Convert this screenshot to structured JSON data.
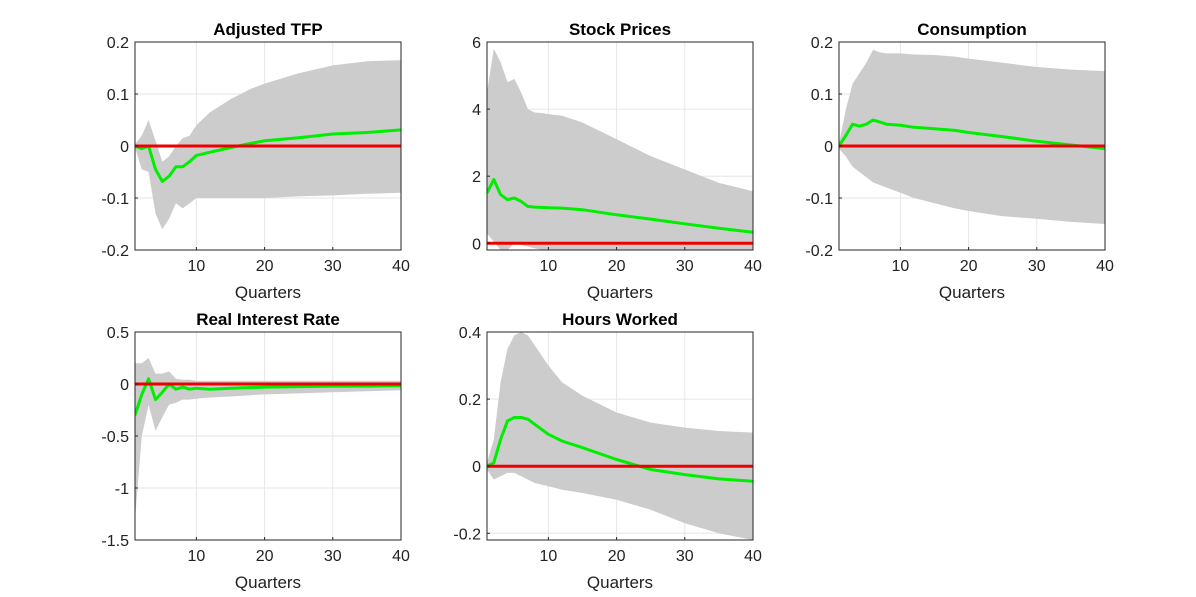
{
  "figure": {
    "colors": {
      "band": "#cccccc",
      "median": "#00ee00",
      "zero_line": "#ee0000",
      "grid": "#e6e6e6",
      "axes": "#262626"
    }
  },
  "chart_data": [
    {
      "type": "area",
      "title": "Adjusted TFP",
      "xlabel": "Quarters",
      "ylabel": "",
      "xlim": [
        1,
        40
      ],
      "ylim": [
        -0.2,
        0.2
      ],
      "xticks": [
        10,
        20,
        30,
        40
      ],
      "yticks": [
        -0.2,
        -0.1,
        0,
        0.1,
        0.2
      ],
      "ytick_labels": [
        "-0.2",
        "-0.1",
        "0",
        "0.1",
        "0.2"
      ],
      "grid": true,
      "series": [
        {
          "name": "median",
          "x": [
            1,
            2,
            3,
            4,
            5,
            6,
            7,
            8,
            9,
            10,
            12,
            15,
            18,
            20,
            25,
            30,
            35,
            40
          ],
          "values": [
            0.0,
            -0.005,
            0.0,
            -0.045,
            -0.068,
            -0.058,
            -0.04,
            -0.04,
            -0.03,
            -0.018,
            -0.012,
            -0.003,
            0.005,
            0.01,
            0.016,
            0.023,
            0.026,
            0.031
          ]
        },
        {
          "name": "zero",
          "x": [
            1,
            40
          ],
          "values": [
            0,
            0
          ]
        }
      ],
      "band": {
        "x": [
          1,
          2,
          3,
          4,
          5,
          6,
          7,
          8,
          9,
          10,
          12,
          15,
          18,
          20,
          25,
          30,
          35,
          40
        ],
        "upper": [
          0.003,
          0.02,
          0.05,
          0.01,
          -0.03,
          -0.02,
          0.0,
          0.015,
          0.02,
          0.04,
          0.065,
          0.09,
          0.11,
          0.12,
          0.14,
          0.155,
          0.163,
          0.165
        ],
        "lower": [
          -0.003,
          -0.045,
          -0.05,
          -0.13,
          -0.16,
          -0.14,
          -0.11,
          -0.12,
          -0.11,
          -0.1,
          -0.1,
          -0.1,
          -0.1,
          -0.1,
          -0.097,
          -0.095,
          -0.092,
          -0.09
        ]
      }
    },
    {
      "type": "area",
      "title": "Stock Prices",
      "xlabel": "Quarters",
      "ylabel": "",
      "xlim": [
        1,
        40
      ],
      "ylim": [
        -0.2,
        6
      ],
      "xticks": [
        10,
        20,
        30,
        40
      ],
      "yticks": [
        0,
        2,
        4,
        6
      ],
      "ytick_labels": [
        "0",
        "2",
        "4",
        "6"
      ],
      "grid": true,
      "series": [
        {
          "name": "median",
          "x": [
            1,
            2,
            3,
            4,
            5,
            6,
            7,
            8,
            9,
            10,
            12,
            15,
            20,
            25,
            30,
            35,
            40
          ],
          "values": [
            1.5,
            1.9,
            1.45,
            1.3,
            1.35,
            1.25,
            1.1,
            1.08,
            1.07,
            1.06,
            1.05,
            1.0,
            0.85,
            0.72,
            0.58,
            0.45,
            0.33
          ]
        },
        {
          "name": "zero",
          "x": [
            1,
            40
          ],
          "values": [
            0,
            0
          ]
        }
      ],
      "band": {
        "x": [
          1,
          2,
          3,
          4,
          5,
          6,
          7,
          8,
          9,
          10,
          12,
          15,
          20,
          25,
          30,
          35,
          40
        ],
        "upper": [
          4.5,
          5.8,
          5.4,
          4.8,
          4.9,
          4.5,
          4.0,
          3.9,
          3.88,
          3.85,
          3.8,
          3.6,
          3.1,
          2.6,
          2.2,
          1.8,
          1.55
        ],
        "lower": [
          0.3,
          0.05,
          -0.2,
          -0.2,
          0.0,
          -0.05,
          -0.1,
          -0.15,
          -0.2,
          -0.2,
          -0.2,
          -0.2,
          -0.2,
          -0.2,
          -0.2,
          -0.2,
          -0.2
        ]
      }
    },
    {
      "type": "area",
      "title": "Consumption",
      "xlabel": "Quarters",
      "ylabel": "",
      "xlim": [
        1,
        40
      ],
      "ylim": [
        -0.2,
        0.2
      ],
      "xticks": [
        10,
        20,
        30,
        40
      ],
      "yticks": [
        -0.2,
        -0.1,
        0,
        0.1,
        0.2
      ],
      "ytick_labels": [
        "-0.2",
        "-0.1",
        "0",
        "0.1",
        "0.2"
      ],
      "grid": true,
      "series": [
        {
          "name": "median",
          "x": [
            1,
            2,
            3,
            4,
            5,
            6,
            7,
            8,
            10,
            12,
            15,
            18,
            20,
            25,
            30,
            35,
            40
          ],
          "values": [
            0.0,
            0.02,
            0.042,
            0.038,
            0.042,
            0.05,
            0.046,
            0.042,
            0.04,
            0.036,
            0.033,
            0.03,
            0.026,
            0.018,
            0.009,
            0.002,
            -0.005
          ]
        },
        {
          "name": "zero",
          "x": [
            1,
            40
          ],
          "values": [
            0,
            0
          ]
        }
      ],
      "band": {
        "x": [
          1,
          2,
          3,
          4,
          5,
          6,
          7,
          8,
          10,
          12,
          15,
          18,
          20,
          25,
          30,
          35,
          40
        ],
        "upper": [
          0.005,
          0.07,
          0.12,
          0.14,
          0.16,
          0.185,
          0.18,
          0.178,
          0.178,
          0.176,
          0.175,
          0.172,
          0.168,
          0.16,
          0.152,
          0.147,
          0.144
        ],
        "lower": [
          -0.005,
          -0.02,
          -0.04,
          -0.05,
          -0.06,
          -0.07,
          -0.075,
          -0.08,
          -0.09,
          -0.1,
          -0.11,
          -0.12,
          -0.125,
          -0.135,
          -0.14,
          -0.146,
          -0.15
        ]
      }
    },
    {
      "type": "area",
      "title": "Real Interest Rate",
      "xlabel": "Quarters",
      "ylabel": "",
      "xlim": [
        1,
        40
      ],
      "ylim": [
        -1.5,
        0.5
      ],
      "xticks": [
        10,
        20,
        30,
        40
      ],
      "yticks": [
        -1.5,
        -1,
        -0.5,
        0,
        0.5
      ],
      "ytick_labels": [
        "-1.5",
        "-1",
        "-0.5",
        "0",
        "0.5"
      ],
      "grid": true,
      "series": [
        {
          "name": "median",
          "x": [
            1,
            2,
            3,
            4,
            5,
            6,
            7,
            8,
            9,
            10,
            12,
            15,
            20,
            25,
            30,
            35,
            40
          ],
          "values": [
            -0.3,
            -0.1,
            0.05,
            -0.15,
            -0.08,
            0.0,
            -0.05,
            -0.03,
            -0.05,
            -0.04,
            -0.05,
            -0.04,
            -0.03,
            -0.025,
            -0.02,
            -0.02,
            -0.015
          ]
        },
        {
          "name": "zero",
          "x": [
            1,
            40
          ],
          "values": [
            0,
            0
          ]
        }
      ],
      "band": {
        "x": [
          1,
          2,
          3,
          4,
          5,
          6,
          7,
          8,
          9,
          10,
          12,
          15,
          20,
          25,
          30,
          35,
          40
        ],
        "upper": [
          0.2,
          0.2,
          0.25,
          0.1,
          0.1,
          0.12,
          0.05,
          0.04,
          0.04,
          0.03,
          0.03,
          0.03,
          0.03,
          0.03,
          0.03,
          0.03,
          0.03
        ],
        "lower": [
          -1.3,
          -0.5,
          -0.2,
          -0.45,
          -0.32,
          -0.2,
          -0.18,
          -0.15,
          -0.15,
          -0.14,
          -0.13,
          -0.12,
          -0.1,
          -0.09,
          -0.08,
          -0.07,
          -0.06
        ]
      }
    },
    {
      "type": "area",
      "title": "Hours Worked",
      "xlabel": "Quarters",
      "ylabel": "",
      "xlim": [
        1,
        40
      ],
      "ylim": [
        -0.22,
        0.4
      ],
      "xticks": [
        10,
        20,
        30,
        40
      ],
      "yticks": [
        -0.2,
        0,
        0.2,
        0.4
      ],
      "ytick_labels": [
        "-0.2",
        "0",
        "0.2",
        "0.4"
      ],
      "grid": true,
      "series": [
        {
          "name": "median",
          "x": [
            1,
            2,
            3,
            4,
            5,
            6,
            7,
            8,
            10,
            12,
            15,
            20,
            25,
            30,
            35,
            40
          ],
          "values": [
            0.0,
            0.01,
            0.08,
            0.135,
            0.145,
            0.145,
            0.14,
            0.125,
            0.095,
            0.075,
            0.055,
            0.02,
            -0.01,
            -0.025,
            -0.038,
            -0.045
          ]
        },
        {
          "name": "zero",
          "x": [
            1,
            40
          ],
          "values": [
            0,
            0
          ]
        }
      ],
      "band": {
        "x": [
          1,
          2,
          3,
          4,
          5,
          6,
          7,
          8,
          10,
          12,
          15,
          20,
          25,
          30,
          35,
          40
        ],
        "upper": [
          0.01,
          0.08,
          0.25,
          0.35,
          0.39,
          0.4,
          0.39,
          0.36,
          0.3,
          0.25,
          0.21,
          0.16,
          0.13,
          0.115,
          0.105,
          0.1
        ],
        "lower": [
          -0.01,
          -0.04,
          -0.03,
          -0.02,
          -0.02,
          -0.03,
          -0.04,
          -0.05,
          -0.06,
          -0.07,
          -0.08,
          -0.1,
          -0.13,
          -0.17,
          -0.2,
          -0.22
        ]
      }
    }
  ]
}
